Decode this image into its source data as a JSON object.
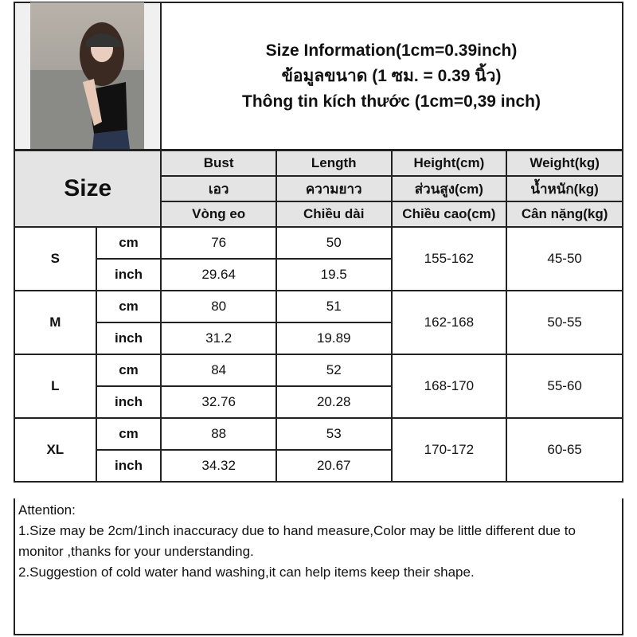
{
  "title": {
    "lines": [
      "Size Information(1cm=0.39inch)",
      "ข้อมูลขนาด (1 ซม. = 0.39 นิ้ว)",
      "Thông tin kích thước (1cm=0,39 inch)"
    ]
  },
  "header": {
    "size_label": "Size",
    "columns": [
      [
        "Bust",
        "เอว",
        "Vòng eo"
      ],
      [
        "Length",
        "ความยาว",
        "Chiều dài"
      ],
      [
        "Height(cm)",
        "ส่วนสูง(cm)",
        "Chiều cao(cm)"
      ],
      [
        "Weight(kg)",
        "น้ำหนัก(kg)",
        "Cân nặng(kg)"
      ]
    ]
  },
  "rows": [
    {
      "size": "S",
      "cm": {
        "unit": "cm",
        "bust": "76",
        "length": "50"
      },
      "inch": {
        "unit": "inch",
        "bust": "29.64",
        "length": "19.5"
      },
      "height": "155-162",
      "weight": "45-50"
    },
    {
      "size": "M",
      "cm": {
        "unit": "cm",
        "bust": "80",
        "length": "51"
      },
      "inch": {
        "unit": "inch",
        "bust": "31.2",
        "length": "19.89"
      },
      "height": "162-168",
      "weight": "50-55"
    },
    {
      "size": "L",
      "cm": {
        "unit": "cm",
        "bust": "84",
        "length": "52"
      },
      "inch": {
        "unit": "inch",
        "bust": "32.76",
        "length": "20.28"
      },
      "height": "168-170",
      "weight": "55-60"
    },
    {
      "size": "XL",
      "cm": {
        "unit": "cm",
        "bust": "88",
        "length": "53"
      },
      "inch": {
        "unit": "inch",
        "bust": "34.32",
        "length": "20.67"
      },
      "height": "170-172",
      "weight": "60-65"
    }
  ],
  "attention": [
    "Attention:",
    "1.Size may be 2cm/1inch inaccuracy due to hand measure,Color may be little different due to monitor ,thanks for your understanding.",
    "2.Suggestion of cold water hand washing,it can help items keep their shape."
  ]
}
